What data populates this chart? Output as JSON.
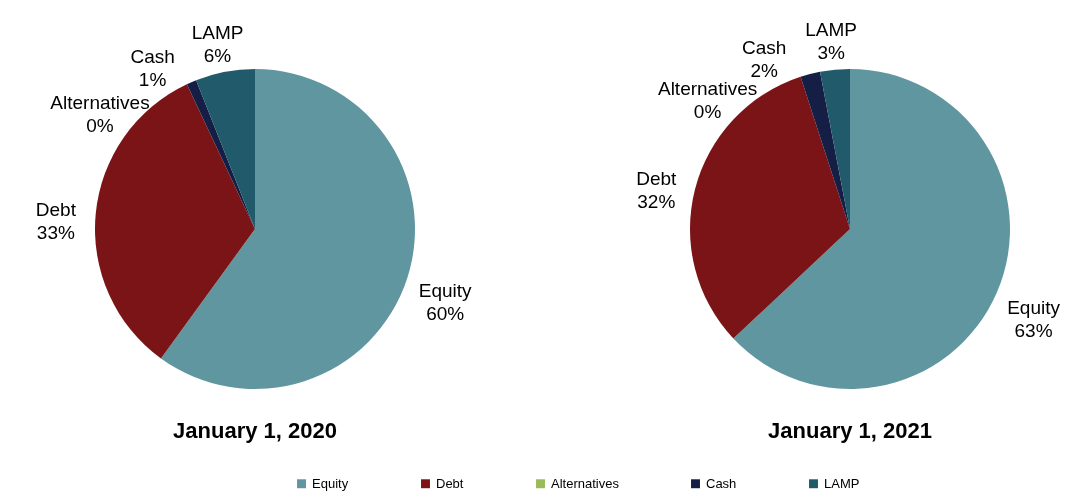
{
  "chart_data": [
    {
      "type": "pie",
      "title": "January 1, 2020",
      "categories": [
        "Equity",
        "Debt",
        "Alternatives",
        "Cash",
        "LAMP"
      ],
      "values": [
        60,
        33,
        0,
        1,
        6
      ],
      "value_labels": [
        "60%",
        "33%",
        "0%",
        "1%",
        "6%"
      ],
      "colors": [
        "#6096a0",
        "#7b1416",
        "#9bbb59",
        "#151e45",
        "#215a6b"
      ],
      "legend": "bottom"
    },
    {
      "type": "pie",
      "title": "January 1, 2021",
      "categories": [
        "Equity",
        "Debt",
        "Alternatives",
        "Cash",
        "LAMP"
      ],
      "values": [
        63,
        32,
        0,
        2,
        3
      ],
      "value_labels": [
        "63%",
        "32%",
        "0%",
        "2%",
        "3%"
      ],
      "colors": [
        "#6096a0",
        "#7b1416",
        "#9bbb59",
        "#151e45",
        "#215a6b"
      ]
    }
  ]
}
